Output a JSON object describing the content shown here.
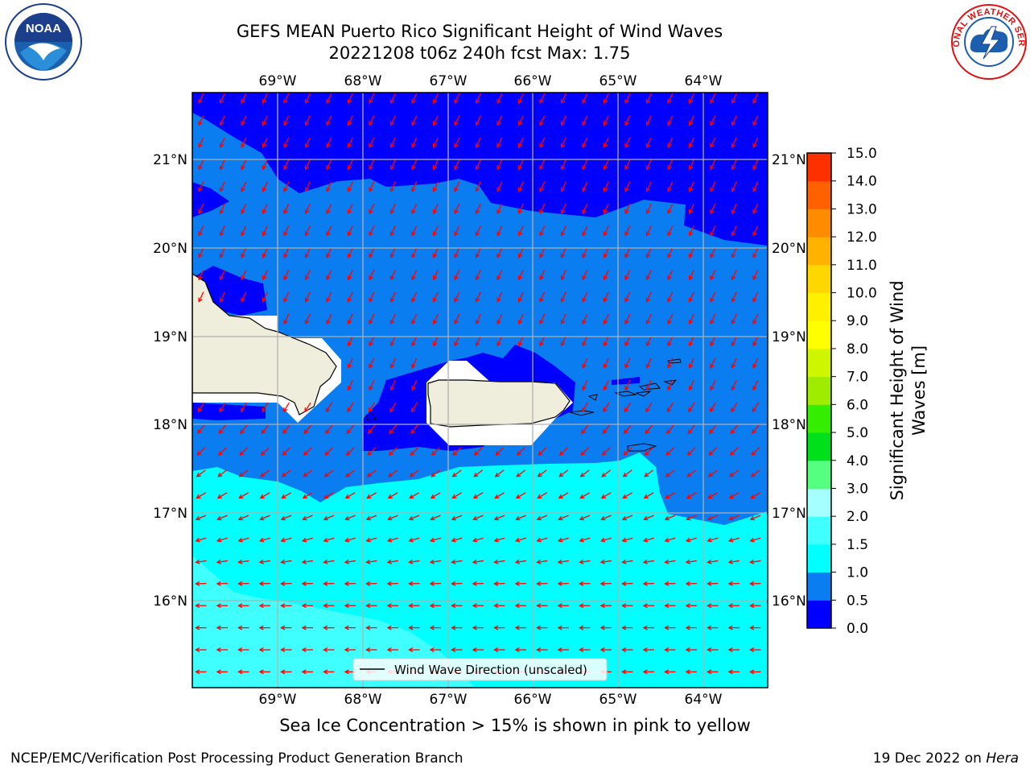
{
  "header": {
    "title_line1": "GEFS MEAN Puerto Rico Significant Height of Wind Waves",
    "title_line2": "20221208 t06z 240h fcst   Max: 1.75"
  },
  "logos": {
    "left": {
      "icon": "noaa-logo",
      "text": "NOAA"
    },
    "right": {
      "icon": "nws-logo",
      "text": "NATIONAL WEATHER SERVICE"
    }
  },
  "map": {
    "longitudes": [
      "69°W",
      "68°W",
      "67°W",
      "66°W",
      "65°W",
      "64°W"
    ],
    "latitudes": [
      "21°N",
      "20°N",
      "19°N",
      "18°N",
      "17°N",
      "16°N"
    ],
    "legend_label": "Wind Wave Direction (unscaled)",
    "colors": {
      "land": "#efeddc",
      "level_0_0_5": "#0000ff",
      "level_0_5_1_0": "#0a7ef0",
      "level_1_0_1_5": "#00ffff",
      "level_1_5_2_0": "#40ffff",
      "arrow": "#ff0000"
    }
  },
  "colorbar": {
    "label_line1": "Significant Height of Wind",
    "label_line2": "Waves [m]",
    "ticks": [
      "15.0",
      "14.0",
      "13.0",
      "12.0",
      "11.0",
      "10.0",
      "9.0",
      "8.0",
      "7.0",
      "6.0",
      "5.0",
      "4.0",
      "3.0",
      "2.0",
      "1.5",
      "1.0",
      "0.5",
      "0.0"
    ],
    "colors_bottom_to_top": [
      "#0000ff",
      "#0a7ef0",
      "#00ffff",
      "#40ffff",
      "#a5ffff",
      "#55ff7f",
      "#00e01a",
      "#35ed00",
      "#a0ec00",
      "#cdf600",
      "#ffff00",
      "#fff000",
      "#ffd700",
      "#ffb300",
      "#ff8c00",
      "#ff6000",
      "#ff3000"
    ]
  },
  "sea_ice_note": "Sea Ice Concentration > 15% is shown in pink to yellow",
  "footer": {
    "left": "NCEP/EMC/Verification Post Processing Product Generation Branch",
    "right_prefix": "19 Dec 2022 on ",
    "right_host": "Hera"
  }
}
